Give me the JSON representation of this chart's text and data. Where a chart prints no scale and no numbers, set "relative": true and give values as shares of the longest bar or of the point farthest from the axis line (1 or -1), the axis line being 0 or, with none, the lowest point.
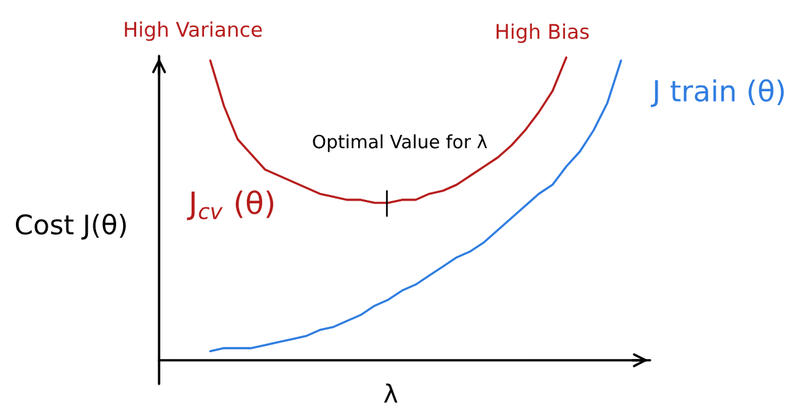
{
  "chart_data": {
    "type": "line",
    "relative": true,
    "xlabel": "λ",
    "ylabel": "Cost J(θ)",
    "categories": [
      null,
      null,
      null,
      null,
      null,
      null,
      null,
      null,
      null,
      null,
      null,
      null,
      null,
      null,
      null,
      null,
      null,
      null,
      null,
      null,
      null,
      null,
      null,
      null,
      null,
      null,
      null,
      null,
      null,
      null,
      null
    ],
    "series": [
      {
        "name": "J$_{cv}$ (θ)",
        "color": "#b71c1c",
        "values": [
          0.99,
          0.84,
          0.73,
          0.68,
          0.63,
          0.61,
          0.59,
          0.57,
          0.55,
          0.54,
          0.53,
          0.53,
          0.52,
          0.52,
          0.53,
          0.53,
          0.55,
          0.56,
          0.58,
          0.61,
          0.64,
          0.67,
          0.71,
          0.76,
          0.82,
          0.89,
          1,
          null,
          null,
          null,
          null
        ]
      },
      {
        "name": "J train (θ)",
        "color": "#2f7de1",
        "values": [
          0.03,
          0.04,
          0.04,
          0.04,
          0.05,
          0.06,
          0.07,
          0.08,
          0.1,
          0.11,
          0.13,
          0.15,
          0.18,
          0.2,
          0.23,
          0.25,
          0.28,
          0.31,
          0.34,
          0.36,
          0.39,
          0.43,
          0.47,
          0.51,
          0.55,
          0.58,
          0.64,
          0.69,
          0.76,
          0.85,
          0.99
        ]
      }
    ],
    "annotations": [
      "High Variance",
      "High Bias",
      "Optimal Value for λ"
    ]
  }
}
